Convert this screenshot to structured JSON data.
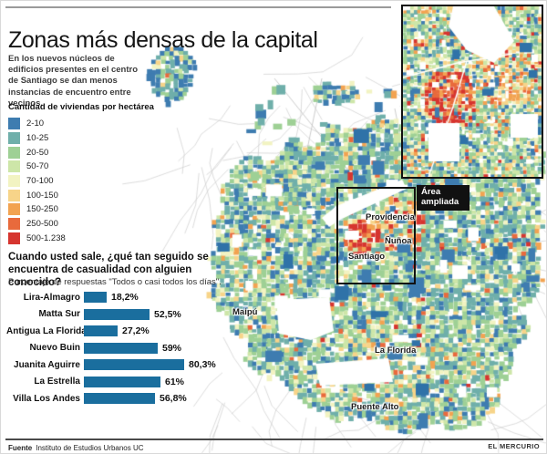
{
  "header": {
    "title": "Zonas más densas de la capital",
    "intro": "En los nuevos núcleos de edificios presentes en el centro de Santiago se dan menos instancias de encuentro entre vecinos."
  },
  "legend": {
    "title": "Cantidad de viviendas por hectárea",
    "items": [
      {
        "label": "2-10",
        "color": "#3E7CB0"
      },
      {
        "label": "10-25",
        "color": "#6FAFAA"
      },
      {
        "label": "20-50",
        "color": "#9ED095"
      },
      {
        "label": "50-70",
        "color": "#CDE6A8"
      },
      {
        "label": "70-100",
        "color": "#F2F3C2"
      },
      {
        "label": "100-150",
        "color": "#F7D489"
      },
      {
        "label": "150-250",
        "color": "#F2A351"
      },
      {
        "label": "250-500",
        "color": "#E86A3C"
      },
      {
        "label": "500-1.238",
        "color": "#D6352F"
      }
    ]
  },
  "chart_data": {
    "type": "bar",
    "orientation": "horizontal",
    "title": "Cuando usted sale, ¿qué tan seguido se encuentra de casualidad con alguien conocido?",
    "subtitle": "Porcentaje de respuestas \"Todos o casi todos los días\".",
    "categories": [
      "Lira-Almagro",
      "Matta Sur",
      "Antigua La Florida",
      "Nuevo Buin",
      "Juanita Aguirre",
      "La Estrella",
      "Villa Los Andes"
    ],
    "values": [
      18.2,
      52.5,
      27.2,
      59,
      80.3,
      61,
      56.8
    ],
    "value_labels": [
      "18,2%",
      "52,5%",
      "27,2%",
      "59%",
      "80,3%",
      "61%",
      "56,8%"
    ],
    "xlim": [
      0,
      100
    ],
    "bar_color": "#1A6E9E",
    "legend_position": "none",
    "grid": false
  },
  "map": {
    "labels": [
      {
        "text": "Providencia"
      },
      {
        "text": "Ñuñoa"
      },
      {
        "text": "Santiago"
      },
      {
        "text": "Maipú"
      },
      {
        "text": "La Florida"
      },
      {
        "text": "Puente Alto"
      }
    ],
    "area_badge": "Área ampliada"
  },
  "footer": {
    "source_label": "Fuente",
    "source": "Instituto de Estudios Urbanos UC",
    "brand": "EL MERCURIO"
  }
}
